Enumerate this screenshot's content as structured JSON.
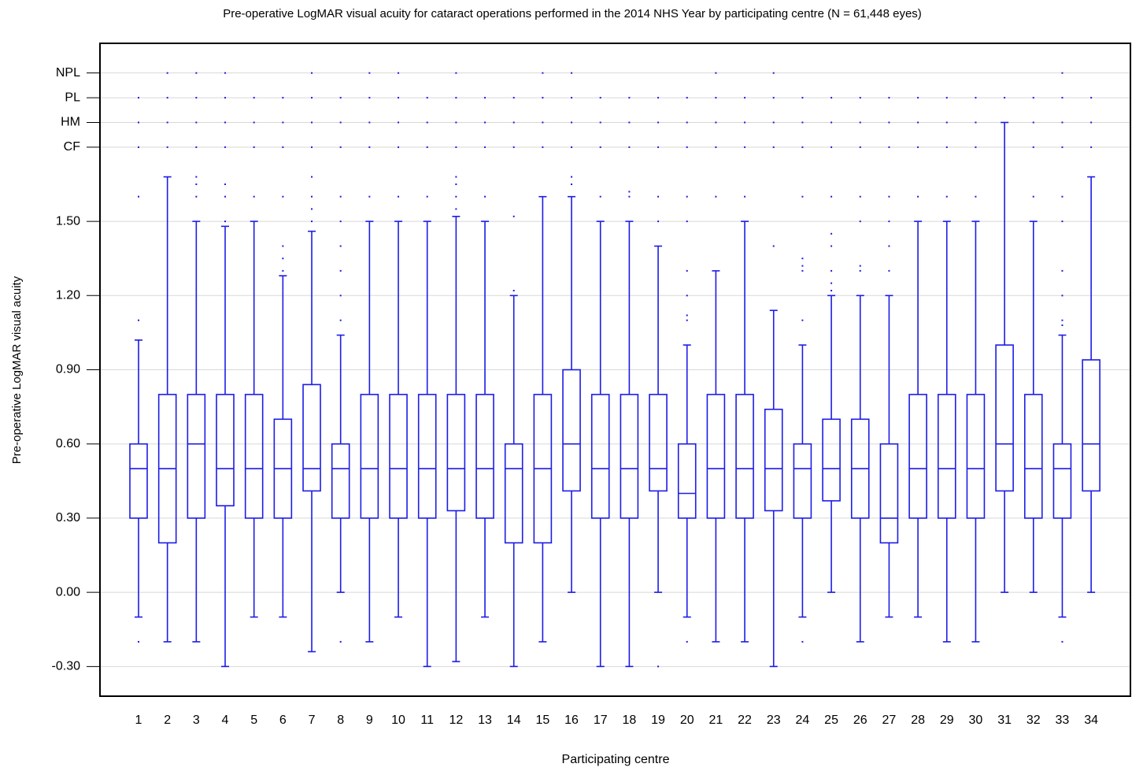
{
  "chart_data": {
    "type": "box",
    "title": "Pre-operative LogMAR visual acuity for cataract operations performed in the 2014 NHS Year by participating centre (N = 61,448 eyes)",
    "x_label": "Participating centre",
    "y_label": "Pre-operative LogMAR visual acuity",
    "color": "#1c1ce6",
    "grid": true,
    "ylim": [
      -0.42,
      2.22
    ],
    "yticks": [
      {
        "value": -0.3,
        "label": "-0.30"
      },
      {
        "value": 0,
        "label": "0.00"
      },
      {
        "value": 0.3,
        "label": "0.30"
      },
      {
        "value": 0.6,
        "label": "0.60"
      },
      {
        "value": 0.9,
        "label": "0.90"
      },
      {
        "value": 1.2,
        "label": "1.20"
      },
      {
        "value": 1.5,
        "label": "1.50"
      },
      {
        "value": 1.8,
        "label": "CF"
      },
      {
        "value": 1.9,
        "label": "HM"
      },
      {
        "value": 2.0,
        "label": "PL"
      },
      {
        "value": 2.1,
        "label": "NPL"
      }
    ],
    "categories": [
      "1",
      "2",
      "3",
      "4",
      "5",
      "6",
      "7",
      "8",
      "9",
      "10",
      "11",
      "12",
      "13",
      "14",
      "15",
      "16",
      "17",
      "18",
      "19",
      "20",
      "21",
      "22",
      "23",
      "24",
      "25",
      "26",
      "27",
      "28",
      "29",
      "30",
      "31",
      "32",
      "33",
      "34"
    ],
    "boxes": [
      {
        "whisker_low": -0.1,
        "q1": 0.3,
        "median": 0.5,
        "q3": 0.6,
        "whisker_high": 1.02,
        "outliers": [
          -0.2,
          1.1,
          1.6,
          1.8,
          1.9,
          2.0
        ]
      },
      {
        "whisker_low": -0.2,
        "q1": 0.2,
        "median": 0.5,
        "q3": 0.8,
        "whisker_high": 1.68,
        "outliers": [
          1.8,
          1.9,
          2.0,
          2.1
        ]
      },
      {
        "whisker_low": -0.2,
        "q1": 0.3,
        "median": 0.6,
        "q3": 0.8,
        "whisker_high": 1.5,
        "outliers": [
          1.6,
          1.65,
          1.68,
          1.8,
          1.9,
          2.0,
          2.1
        ]
      },
      {
        "whisker_low": -0.3,
        "q1": 0.35,
        "median": 0.5,
        "q3": 0.8,
        "whisker_high": 1.48,
        "outliers": [
          1.5,
          1.6,
          1.65,
          1.8,
          1.9,
          2.0,
          2.1
        ]
      },
      {
        "whisker_low": -0.1,
        "q1": 0.3,
        "median": 0.5,
        "q3": 0.8,
        "whisker_high": 1.5,
        "outliers": [
          1.6,
          1.8,
          1.9,
          2.0
        ]
      },
      {
        "whisker_low": -0.1,
        "q1": 0.3,
        "median": 0.5,
        "q3": 0.7,
        "whisker_high": 1.28,
        "outliers": [
          1.3,
          1.35,
          1.4,
          1.6,
          1.8,
          1.9,
          2.0
        ]
      },
      {
        "whisker_low": -0.24,
        "q1": 0.41,
        "median": 0.5,
        "q3": 0.84,
        "whisker_high": 1.46,
        "outliers": [
          1.5,
          1.55,
          1.6,
          1.68,
          1.8,
          1.9,
          2.0,
          2.1
        ]
      },
      {
        "whisker_low": 0,
        "q1": 0.3,
        "median": 0.5,
        "q3": 0.6,
        "whisker_high": 1.04,
        "outliers": [
          -0.2,
          1.1,
          1.2,
          1.3,
          1.4,
          1.5,
          1.6,
          1.8,
          1.9,
          2.0
        ]
      },
      {
        "whisker_low": -0.2,
        "q1": 0.3,
        "median": 0.5,
        "q3": 0.8,
        "whisker_high": 1.5,
        "outliers": [
          1.6,
          1.8,
          1.9,
          2.0,
          2.1
        ]
      },
      {
        "whisker_low": -0.1,
        "q1": 0.3,
        "median": 0.5,
        "q3": 0.8,
        "whisker_high": 1.5,
        "outliers": [
          1.6,
          1.8,
          1.9,
          2.0,
          2.1
        ]
      },
      {
        "whisker_low": -0.3,
        "q1": 0.3,
        "median": 0.5,
        "q3": 0.8,
        "whisker_high": 1.5,
        "outliers": [
          1.6,
          1.8,
          1.9,
          2.0
        ]
      },
      {
        "whisker_low": -0.28,
        "q1": 0.33,
        "median": 0.5,
        "q3": 0.8,
        "whisker_high": 1.52,
        "outliers": [
          1.55,
          1.6,
          1.65,
          1.68,
          1.8,
          1.9,
          2.0,
          2.1
        ]
      },
      {
        "whisker_low": -0.1,
        "q1": 0.3,
        "median": 0.5,
        "q3": 0.8,
        "whisker_high": 1.5,
        "outliers": [
          1.6,
          1.8,
          1.9,
          2.0
        ]
      },
      {
        "whisker_low": -0.3,
        "q1": 0.2,
        "median": 0.5,
        "q3": 0.6,
        "whisker_high": 1.2,
        "outliers": [
          1.22,
          1.52,
          1.8,
          1.9,
          2.0
        ]
      },
      {
        "whisker_low": -0.2,
        "q1": 0.2,
        "median": 0.5,
        "q3": 0.8,
        "whisker_high": 1.6,
        "outliers": [
          1.8,
          1.9,
          2.0,
          2.1
        ]
      },
      {
        "whisker_low": 0,
        "q1": 0.41,
        "median": 0.6,
        "q3": 0.9,
        "whisker_high": 1.6,
        "outliers": [
          1.65,
          1.68,
          1.8,
          1.9,
          2.0,
          2.1
        ]
      },
      {
        "whisker_low": -0.3,
        "q1": 0.3,
        "median": 0.5,
        "q3": 0.8,
        "whisker_high": 1.5,
        "outliers": [
          1.6,
          1.8,
          1.9,
          2.0
        ]
      },
      {
        "whisker_low": -0.3,
        "q1": 0.3,
        "median": 0.5,
        "q3": 0.8,
        "whisker_high": 1.5,
        "outliers": [
          1.6,
          1.62,
          1.8,
          1.9,
          2.0
        ]
      },
      {
        "whisker_low": 0,
        "q1": 0.41,
        "median": 0.5,
        "q3": 0.8,
        "whisker_high": 1.4,
        "outliers": [
          -0.3,
          1.5,
          1.6,
          1.8,
          1.9,
          2.0
        ]
      },
      {
        "whisker_low": -0.1,
        "q1": 0.3,
        "median": 0.4,
        "q3": 0.6,
        "whisker_high": 1.0,
        "outliers": [
          -0.2,
          1.1,
          1.12,
          1.2,
          1.3,
          1.5,
          1.6,
          1.8,
          1.9,
          2.0
        ]
      },
      {
        "whisker_low": -0.2,
        "q1": 0.3,
        "median": 0.5,
        "q3": 0.8,
        "whisker_high": 1.3,
        "outliers": [
          1.6,
          1.8,
          1.9,
          2.0,
          2.1
        ]
      },
      {
        "whisker_low": -0.2,
        "q1": 0.3,
        "median": 0.5,
        "q3": 0.8,
        "whisker_high": 1.5,
        "outliers": [
          1.6,
          1.8,
          1.9,
          2.0
        ]
      },
      {
        "whisker_low": -0.3,
        "q1": 0.33,
        "median": 0.5,
        "q3": 0.74,
        "whisker_high": 1.14,
        "outliers": [
          1.4,
          1.8,
          1.9,
          2.0,
          2.1
        ]
      },
      {
        "whisker_low": -0.1,
        "q1": 0.3,
        "median": 0.5,
        "q3": 0.6,
        "whisker_high": 1.0,
        "outliers": [
          -0.2,
          1.1,
          1.3,
          1.32,
          1.35,
          1.6,
          1.8,
          1.9,
          2.0
        ]
      },
      {
        "whisker_low": 0,
        "q1": 0.37,
        "median": 0.5,
        "q3": 0.7,
        "whisker_high": 1.2,
        "outliers": [
          1.22,
          1.25,
          1.3,
          1.4,
          1.45,
          1.6,
          1.8,
          1.9,
          2.0
        ]
      },
      {
        "whisker_low": -0.2,
        "q1": 0.3,
        "median": 0.5,
        "q3": 0.7,
        "whisker_high": 1.2,
        "outliers": [
          1.3,
          1.32,
          1.5,
          1.6,
          1.8,
          1.9,
          2.0
        ]
      },
      {
        "whisker_low": -0.1,
        "q1": 0.2,
        "median": 0.3,
        "q3": 0.6,
        "whisker_high": 1.2,
        "outliers": [
          1.3,
          1.4,
          1.5,
          1.6,
          1.8,
          1.9,
          2.0
        ]
      },
      {
        "whisker_low": -0.1,
        "q1": 0.3,
        "median": 0.5,
        "q3": 0.8,
        "whisker_high": 1.5,
        "outliers": [
          1.6,
          1.8,
          1.9,
          2.0
        ]
      },
      {
        "whisker_low": -0.2,
        "q1": 0.3,
        "median": 0.5,
        "q3": 0.8,
        "whisker_high": 1.5,
        "outliers": [
          1.6,
          1.8,
          1.9,
          2.0
        ]
      },
      {
        "whisker_low": -0.2,
        "q1": 0.3,
        "median": 0.5,
        "q3": 0.8,
        "whisker_high": 1.5,
        "outliers": [
          1.6,
          1.8,
          1.9,
          2.0
        ]
      },
      {
        "whisker_low": 0,
        "q1": 0.41,
        "median": 0.6,
        "q3": 1.0,
        "whisker_high": 1.9,
        "outliers": [
          2.0
        ]
      },
      {
        "whisker_low": 0,
        "q1": 0.3,
        "median": 0.5,
        "q3": 0.8,
        "whisker_high": 1.5,
        "outliers": [
          1.6,
          1.8,
          1.9,
          2.0
        ]
      },
      {
        "whisker_low": -0.1,
        "q1": 0.3,
        "median": 0.5,
        "q3": 0.6,
        "whisker_high": 1.04,
        "outliers": [
          -0.2,
          1.08,
          1.1,
          1.2,
          1.3,
          1.5,
          1.6,
          1.8,
          1.9,
          2.0,
          2.1
        ]
      },
      {
        "whisker_low": 0,
        "q1": 0.41,
        "median": 0.6,
        "q3": 0.94,
        "whisker_high": 1.68,
        "outliers": [
          1.8,
          1.9,
          2.0
        ]
      }
    ]
  }
}
